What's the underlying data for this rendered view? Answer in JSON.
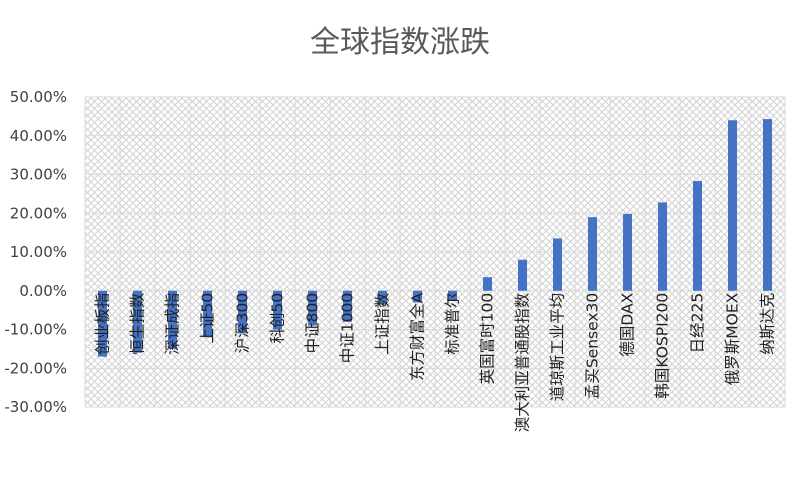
{
  "chart_data": {
    "type": "bar",
    "title": "全球指数涨跌",
    "xlabel": "",
    "ylabel": "",
    "ylim": [
      -0.3,
      0.5
    ],
    "yticks": [
      "50.00%",
      "40.00%",
      "30.00%",
      "20.00%",
      "10.00%",
      "0.00%",
      "-10.00%",
      "-20.00%",
      "-30.00%"
    ],
    "grid": true,
    "legend": "none",
    "bar_color": "#4472C4",
    "categories": [
      "创业板指",
      "恒生指数",
      "深证成指",
      "上证50",
      "沪深300",
      "科创50",
      "中证800",
      "中证1000",
      "上证指数",
      "东方财富全A",
      "标准普尔",
      "英国富时100",
      "澳大利亚普通股指数",
      "道琼斯工业平均",
      "孟买Sensex30",
      "德国DAX",
      "韩国KOSPI200",
      "日经225",
      "俄罗斯MOEX",
      "纳斯达克"
    ],
    "values": [
      -0.17,
      -0.16,
      -0.15,
      -0.12,
      -0.11,
      -0.1,
      -0.09,
      -0.08,
      -0.035,
      -0.03,
      -0.025,
      0.035,
      0.08,
      0.135,
      0.19,
      0.198,
      0.228,
      0.283,
      0.44,
      0.443
    ]
  }
}
